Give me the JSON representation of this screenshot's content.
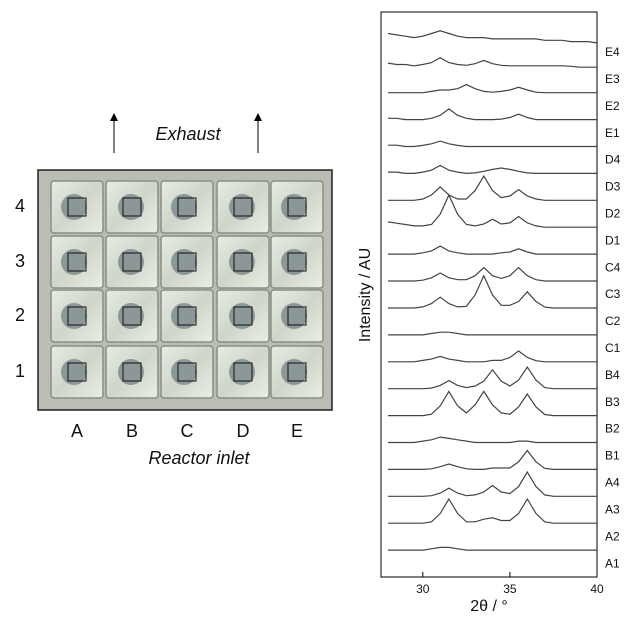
{
  "figure_panel": {
    "top_label": "Exhaust",
    "bottom_label": "Reactor inlet",
    "columns": [
      "A",
      "B",
      "C",
      "D",
      "E"
    ],
    "rows": [
      "4",
      "3",
      "2",
      "1"
    ]
  },
  "chart_data": {
    "type": "line",
    "x_label": "2θ / °",
    "y_label": "Intensity / AU",
    "x": [
      28,
      28.5,
      29,
      29.5,
      30,
      30.5,
      31,
      31.5,
      32,
      32.5,
      33,
      33.5,
      34,
      34.5,
      35,
      35.5,
      36,
      36.5,
      37,
      37.5,
      38,
      38.5,
      39,
      39.5,
      40
    ],
    "xlim": [
      27.6,
      40
    ],
    "xticks": [
      30,
      35,
      40
    ],
    "ylim": [
      0,
      21
    ],
    "color": "#444444",
    "series": [
      {
        "name": "A1",
        "values": [
          1,
          1,
          1,
          1,
          1,
          1.05,
          1.1,
          1.1,
          1.05,
          1,
          1,
          1,
          1,
          1,
          1,
          1,
          1,
          1,
          1,
          1,
          1,
          1,
          1,
          1,
          1
        ]
      },
      {
        "name": "A2",
        "values": [
          2,
          2,
          2,
          2,
          2,
          2.05,
          2.36,
          2.9,
          2.36,
          2.05,
          2.05,
          2.15,
          2.2,
          2.1,
          2.1,
          2.36,
          2.9,
          2.36,
          2.05,
          2,
          2,
          2,
          2,
          2,
          2
        ]
      },
      {
        "name": "A3",
        "values": [
          3,
          3,
          3,
          3,
          3,
          3.02,
          3.12,
          3.3,
          3.12,
          3.02,
          3.05,
          3.16,
          3.4,
          3.16,
          3.1,
          3.36,
          3.9,
          3.36,
          3.05,
          3,
          3,
          3,
          3,
          3,
          3
        ]
      },
      {
        "name": "A4",
        "values": [
          4,
          4,
          4,
          4,
          4,
          4.02,
          4.1,
          4.2,
          4.1,
          4.02,
          4,
          4,
          4.05,
          4.05,
          4.05,
          4.28,
          4.7,
          4.28,
          4.04,
          4,
          4,
          4,
          4,
          4,
          4
        ]
      },
      {
        "name": "B1",
        "values": [
          5,
          5,
          5,
          5,
          5.05,
          5.1,
          5.2,
          5.15,
          5.1,
          5.05,
          5,
          5,
          5,
          5,
          5,
          5.05,
          5.05,
          5,
          5,
          5,
          5,
          5,
          5,
          5,
          5
        ]
      },
      {
        "name": "B2",
        "values": [
          6,
          6,
          6,
          6,
          6,
          6.05,
          6.36,
          6.9,
          6.36,
          6.1,
          6.4,
          6.9,
          6.4,
          6.1,
          6.05,
          6.32,
          6.8,
          6.32,
          6.04,
          6,
          6,
          6,
          6,
          6,
          6
        ]
      },
      {
        "name": "B3",
        "values": [
          7,
          7,
          7,
          7,
          7,
          7.02,
          7.12,
          7.3,
          7.12,
          7.04,
          7.1,
          7.28,
          7.7,
          7.28,
          7.1,
          7.32,
          7.8,
          7.32,
          7.04,
          7,
          7,
          7,
          7,
          7,
          7
        ]
      },
      {
        "name": "B4",
        "values": [
          8,
          8,
          8,
          8,
          8.05,
          8.1,
          8.2,
          8.1,
          8.05,
          8,
          8,
          8,
          8.05,
          8.05,
          8.16,
          8.4,
          8.16,
          8.04,
          8,
          8,
          8,
          8,
          8,
          8,
          8
        ]
      },
      {
        "name": "C1",
        "values": [
          9,
          9,
          9,
          9,
          9,
          9.05,
          9.1,
          9.1,
          9.05,
          9,
          9,
          9,
          9,
          9,
          9,
          9,
          9,
          9,
          9,
          9,
          9,
          9,
          9,
          9,
          9
        ]
      },
      {
        "name": "C2",
        "values": [
          10,
          10,
          10,
          10,
          10.04,
          10.16,
          10.4,
          10.16,
          10.04,
          10.06,
          10.48,
          11.2,
          10.48,
          10.1,
          10.1,
          10.24,
          10.6,
          10.24,
          10.03,
          10,
          10,
          10,
          10,
          10,
          10
        ]
      },
      {
        "name": "C3",
        "values": [
          11,
          11,
          11,
          11,
          11.03,
          11.12,
          11.3,
          11.12,
          11.05,
          11.05,
          11.2,
          11.5,
          11.2,
          11.1,
          11.2,
          11.5,
          11.2,
          11.05,
          11,
          11,
          11,
          11,
          11,
          11,
          11
        ]
      },
      {
        "name": "C4",
        "values": [
          12,
          12,
          12,
          12,
          12.05,
          12.12,
          12.3,
          12.12,
          12.05,
          12,
          12,
          12,
          12,
          12.05,
          12.08,
          12.2,
          12.08,
          12,
          12,
          12,
          12,
          12,
          12,
          12,
          12
        ]
      },
      {
        "name": "D1",
        "values": [
          13.2,
          13.15,
          13.1,
          13.05,
          13.05,
          13.1,
          13.48,
          14.2,
          13.48,
          13.1,
          13.05,
          13.12,
          13.3,
          13.12,
          13.16,
          13.4,
          13.16,
          13.05,
          13,
          13,
          13,
          13,
          13,
          13,
          13
        ]
      },
      {
        "name": "D2",
        "values": [
          14,
          14,
          14,
          14,
          14.05,
          14.2,
          14.5,
          14.2,
          14.05,
          14.05,
          14.36,
          14.9,
          14.36,
          14.1,
          14.16,
          14.4,
          14.16,
          14.05,
          14,
          14,
          14,
          14,
          14,
          14,
          14
        ]
      },
      {
        "name": "D3",
        "values": [
          15.05,
          15.05,
          15,
          15,
          15.05,
          15.12,
          15.3,
          15.12,
          15.05,
          15,
          15.02,
          15.08,
          15.15,
          15.2,
          15.15,
          15.08,
          15.02,
          15,
          15,
          15,
          15,
          15,
          15,
          15,
          15
        ]
      },
      {
        "name": "D4",
        "values": [
          16.05,
          16.05,
          16,
          16,
          16.04,
          16.1,
          16.2,
          16.1,
          16.04,
          16,
          16,
          16,
          16,
          16,
          16,
          16,
          16,
          16,
          16,
          16,
          16,
          16,
          16,
          16,
          16
        ]
      },
      {
        "name": "E1",
        "values": [
          17.05,
          17.05,
          17,
          17,
          17,
          17.05,
          17.16,
          17.4,
          17.16,
          17.05,
          17,
          17,
          17,
          17.02,
          17.08,
          17.2,
          17.08,
          17,
          17,
          17,
          17,
          17,
          17,
          17,
          17
        ]
      },
      {
        "name": "E2",
        "values": [
          18,
          18,
          18,
          18,
          18,
          18.05,
          18.1,
          18.1,
          18.15,
          18.3,
          18.15,
          18.05,
          18.02,
          18.05,
          18.1,
          18.2,
          18.1,
          18.02,
          18,
          18,
          18,
          18,
          18,
          18,
          18
        ]
      },
      {
        "name": "E3",
        "values": [
          19.1,
          19.05,
          19.05,
          19,
          19.05,
          19.12,
          19.3,
          19.12,
          19.05,
          19.02,
          19.08,
          19.2,
          19.08,
          19.02,
          19,
          19,
          19,
          19,
          19,
          19,
          19,
          18.98,
          18.95,
          18.95,
          18.95
        ]
      },
      {
        "name": "E4",
        "values": [
          20.2,
          20.15,
          20.1,
          20.05,
          20.1,
          20.2,
          20.3,
          20.2,
          20.1,
          20.05,
          20.05,
          20.05,
          20,
          20,
          20,
          20,
          20,
          20,
          19.95,
          19.95,
          19.95,
          19.9,
          19.9,
          19.9,
          19.85
        ]
      }
    ]
  }
}
